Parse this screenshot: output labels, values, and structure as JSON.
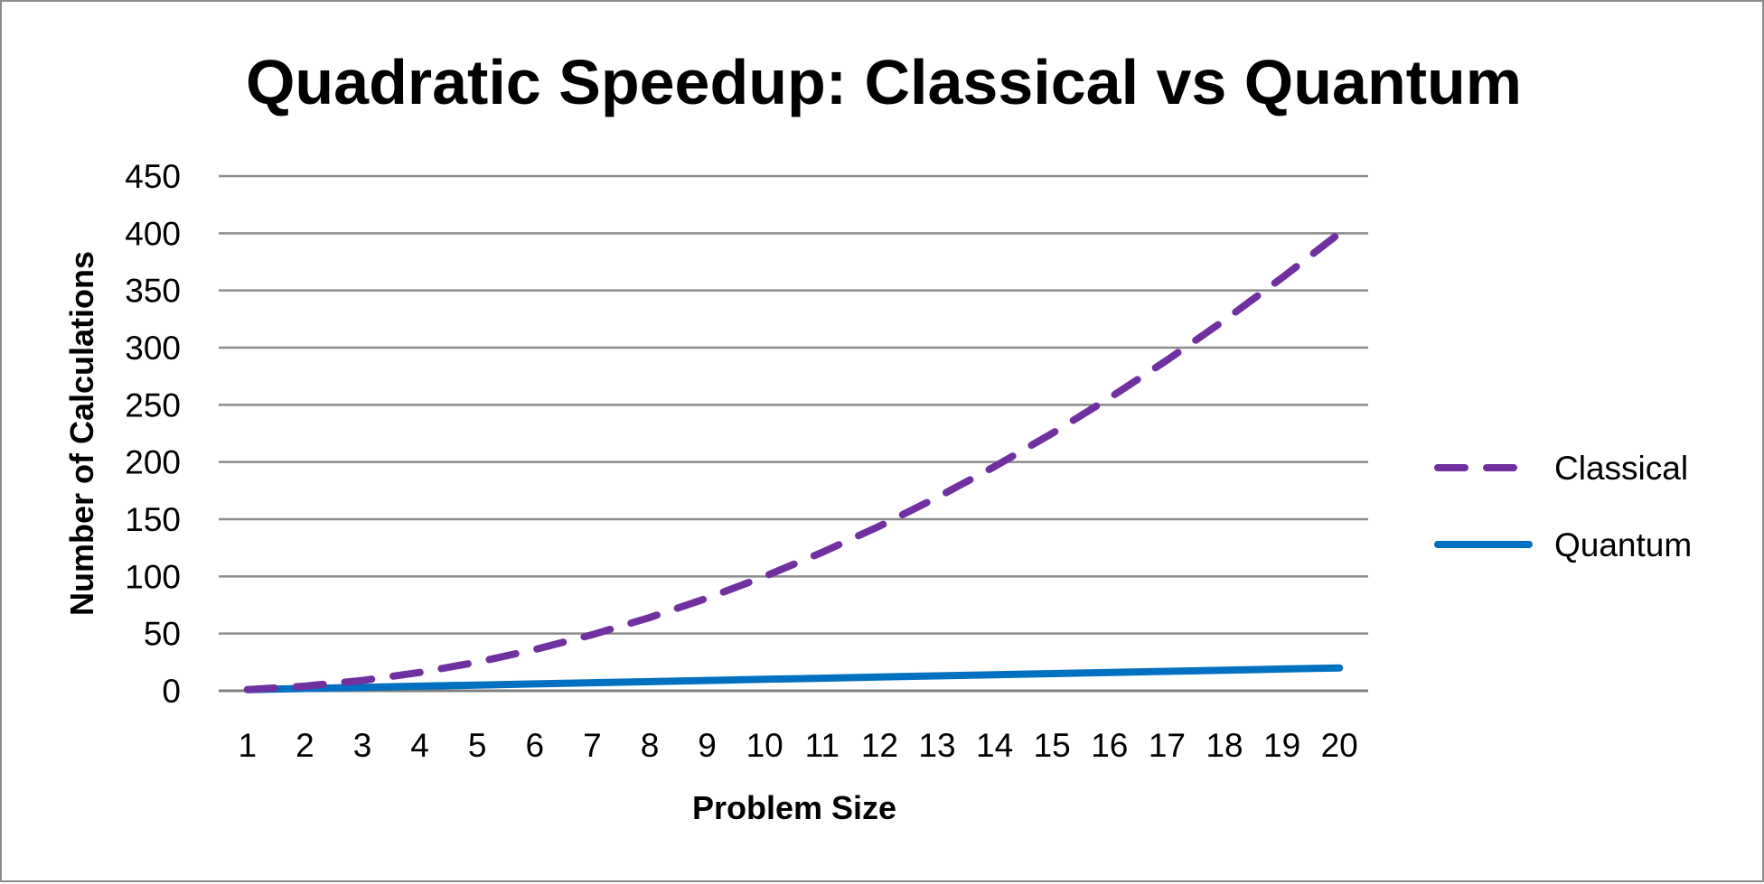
{
  "chart_data": {
    "type": "line",
    "title": "Quadratic Speedup: Classical vs Quantum",
    "xlabel": "Problem Size",
    "ylabel": "Number of Calculations",
    "x": [
      1,
      2,
      3,
      4,
      5,
      6,
      7,
      8,
      9,
      10,
      11,
      12,
      13,
      14,
      15,
      16,
      17,
      18,
      19,
      20
    ],
    "x_tick_labels": [
      "1",
      "2",
      "3",
      "4",
      "5",
      "6",
      "7",
      "8",
      "9",
      "10",
      "11",
      "12",
      "13",
      "14",
      "15",
      "16",
      "17",
      "18",
      "19",
      "20"
    ],
    "y_tick_labels": [
      "0",
      "50",
      "100",
      "150",
      "200",
      "250",
      "300",
      "350",
      "400",
      "450"
    ],
    "y_ticks": [
      0,
      50,
      100,
      150,
      200,
      250,
      300,
      350,
      400,
      450
    ],
    "ylim": [
      0,
      450
    ],
    "grid": true,
    "legend_position": "right",
    "series": [
      {
        "name": "Classical",
        "values": [
          1,
          4,
          9,
          16,
          25,
          36,
          49,
          64,
          81,
          100,
          121,
          144,
          169,
          196,
          225,
          256,
          289,
          324,
          361,
          400
        ],
        "color": "#7030a0",
        "style": "dashed"
      },
      {
        "name": "Quantum",
        "values": [
          1,
          2,
          3,
          4,
          5,
          6,
          7,
          8,
          9,
          10,
          11,
          12,
          13,
          14,
          15,
          16,
          17,
          18,
          19,
          20
        ],
        "color": "#0070c0",
        "style": "solid"
      }
    ]
  }
}
